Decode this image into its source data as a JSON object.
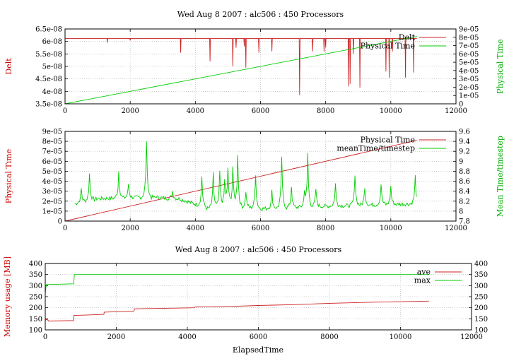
{
  "colors": {
    "red": "#cc2222",
    "green": "#00cc00",
    "red_label": "#cc0000",
    "green_label": "#00b000"
  },
  "chart_data": [
    {
      "type": "line",
      "title": "Wed Aug 8 2007 : alc506 : 450 Processors",
      "xlabel": "",
      "ylabel": "Delt",
      "y2label": "Physical Time",
      "xlim": [
        0,
        12000
      ],
      "ylim": [
        3.5e-08,
        6.5e-08
      ],
      "y2lim": [
        0,
        9e-05
      ],
      "xticks": [
        "0",
        "2000",
        "4000",
        "6000",
        "8000",
        "10000",
        "12000"
      ],
      "yticks": [
        "3.5e-08",
        "4e-08",
        "4.5e-08",
        "5e-08",
        "5.5e-08",
        "6e-08",
        "6.5e-08"
      ],
      "y2ticks": [
        "0",
        "1e-05",
        "2e-05",
        "3e-05",
        "4e-05",
        "5e-05",
        "6e-05",
        "7e-05",
        "8e-05",
        "9e-05"
      ],
      "legend": "top-right",
      "grid": true,
      "series": [
        {
          "name": "Delt",
          "color": "#cc2222",
          "axis": "y1",
          "baseline": 6.12e-08,
          "x_end": 10800,
          "dips": [
            [
              1300,
              5.95e-08
            ],
            [
              2000,
              6.04e-08
            ],
            [
              3550,
              5.55e-08
            ],
            [
              4450,
              5.2e-08
            ],
            [
              5150,
              5e-08
            ],
            [
              5250,
              5.75e-08
            ],
            [
              5500,
              5.8e-08
            ],
            [
              5550,
              4.95e-08
            ],
            [
              5950,
              5.55e-08
            ],
            [
              6350,
              5.6e-08
            ],
            [
              7200,
              3.85e-08
            ],
            [
              7600,
              5.6e-08
            ],
            [
              7950,
              5.6e-08
            ],
            [
              8000,
              5.75e-08
            ],
            [
              8700,
              4.2e-08
            ],
            [
              8750,
              4.3e-08
            ],
            [
              8850,
              5.5e-08
            ],
            [
              9050,
              4.15e-08
            ],
            [
              9850,
              4.8e-08
            ],
            [
              9950,
              4.55e-08
            ],
            [
              10050,
              5.6e-08
            ],
            [
              10450,
              4.55e-08
            ],
            [
              10700,
              4.75e-08
            ]
          ]
        },
        {
          "name": "Physical Time",
          "color": "#00cc00",
          "axis": "y2",
          "points": [
            [
              0,
              0
            ],
            [
              10800,
              8.1e-05
            ]
          ]
        }
      ]
    },
    {
      "type": "line",
      "title": "",
      "xlabel": "",
      "ylabel": "Physical Time",
      "y2label": "Mean Time/timestep",
      "xlim": [
        0,
        12000
      ],
      "ylim": [
        0,
        9e-05
      ],
      "y2lim": [
        7.8,
        9.6
      ],
      "xticks": [
        "0",
        "2000",
        "4000",
        "6000",
        "8000",
        "10000",
        "12000"
      ],
      "yticks": [
        "0",
        "1e-05",
        "2e-05",
        "3e-05",
        "4e-05",
        "5e-05",
        "6e-05",
        "7e-05",
        "8e-05",
        "9e-05"
      ],
      "y2ticks": [
        "7.8",
        "8",
        "8.2",
        "8.4",
        "8.6",
        "8.8",
        "9",
        "9.2",
        "9.4",
        "9.6"
      ],
      "legend": "top-right",
      "grid": true,
      "series": [
        {
          "name": "Physical Time",
          "color": "#cc2222",
          "axis": "y1",
          "points": [
            [
              0,
              0
            ],
            [
              10800,
              8.1e-05
            ]
          ]
        },
        {
          "name": "meanTime/timestep",
          "color": "#00cc00",
          "axis": "y2",
          "baseline": [
            [
              300,
              8.15
            ],
            [
              1000,
              8.25
            ],
            [
              2500,
              8.28
            ],
            [
              3500,
              8.25
            ],
            [
              4400,
              8.05
            ],
            [
              5000,
              8.1
            ],
            [
              6000,
              8.05
            ],
            [
              8000,
              8.1
            ],
            [
              10800,
              8.15
            ]
          ],
          "x_start": 300,
          "x_end": 10800,
          "peaks": [
            [
              500,
              8.45
            ],
            [
              750,
              8.75
            ],
            [
              1650,
              8.8
            ],
            [
              1950,
              8.55
            ],
            [
              2500,
              9.42
            ],
            [
              2800,
              8.3
            ],
            [
              3300,
              8.4
            ],
            [
              4200,
              8.7
            ],
            [
              4550,
              8.75
            ],
            [
              4750,
              8.8
            ],
            [
              4900,
              8.6
            ],
            [
              5000,
              8.85
            ],
            [
              5150,
              8.9
            ],
            [
              5300,
              9.15
            ],
            [
              5550,
              8.4
            ],
            [
              5850,
              8.75
            ],
            [
              6350,
              8.4
            ],
            [
              6650,
              9.1
            ],
            [
              6950,
              8.5
            ],
            [
              7350,
              8.4
            ],
            [
              7450,
              9.15
            ],
            [
              7700,
              8.45
            ],
            [
              8300,
              8.55
            ],
            [
              8900,
              8.75
            ],
            [
              9200,
              8.5
            ],
            [
              9700,
              8.55
            ],
            [
              10000,
              8.5
            ],
            [
              10750,
              8.7
            ]
          ]
        }
      ]
    },
    {
      "type": "line",
      "title": "Wed Aug 8 2007 : alc506 : 450 Processors",
      "xlabel": "ElapsedTime",
      "ylabel": "Memory usage [MB]",
      "y2label": "",
      "xlim": [
        0,
        12000
      ],
      "ylim": [
        100,
        400
      ],
      "y2lim": [
        100,
        400
      ],
      "xticks": [
        "0",
        "2000",
        "4000",
        "6000",
        "8000",
        "10000",
        "12000"
      ],
      "yticks": [
        "100",
        "150",
        "200",
        "250",
        "300",
        "350",
        "400"
      ],
      "y2ticks": [
        "100",
        "150",
        "200",
        "250",
        "300",
        "350",
        "400"
      ],
      "legend": "top-right",
      "grid": true,
      "series": [
        {
          "name": "ave",
          "color": "#cc2222",
          "axis": "y1",
          "points": [
            [
              0,
              143
            ],
            [
              50,
              148
            ],
            [
              100,
              140
            ],
            [
              800,
              142
            ],
            [
              810,
              165
            ],
            [
              1650,
              170
            ],
            [
              1660,
              180
            ],
            [
              2500,
              185
            ],
            [
              2510,
              195
            ],
            [
              4200,
              200
            ],
            [
              4210,
              203
            ],
            [
              5200,
              206
            ],
            [
              6000,
              210
            ],
            [
              7000,
              214
            ],
            [
              8000,
              220
            ],
            [
              9000,
              224
            ],
            [
              10800,
              230
            ]
          ]
        },
        {
          "name": "max",
          "color": "#00cc00",
          "axis": "y1",
          "points": [
            [
              0,
              265
            ],
            [
              30,
              305
            ],
            [
              800,
              308
            ],
            [
              820,
              350
            ],
            [
              10800,
              350
            ]
          ]
        }
      ]
    }
  ]
}
